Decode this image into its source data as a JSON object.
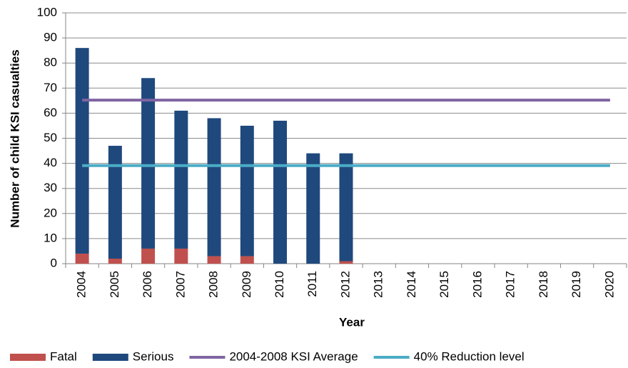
{
  "chart_data": {
    "type": "bar",
    "stacked": true,
    "x_label": "Year",
    "y_label": "Number of child KSI casualties",
    "categories": [
      "2004",
      "2005",
      "2006",
      "2007",
      "2008",
      "2009",
      "2010",
      "2011",
      "2012",
      "2013",
      "2014",
      "2015",
      "2016",
      "2017",
      "2018",
      "2019",
      "2020"
    ],
    "series": [
      {
        "name": "Fatal",
        "type": "bar",
        "color": "#c0504d",
        "values": [
          4,
          2,
          6,
          6,
          3,
          3,
          0,
          0,
          1,
          null,
          null,
          null,
          null,
          null,
          null,
          null,
          null
        ]
      },
      {
        "name": "Serious",
        "type": "bar",
        "color": "#1f497d",
        "values": [
          82,
          45,
          68,
          55,
          55,
          52,
          57,
          44,
          43,
          null,
          null,
          null,
          null,
          null,
          null,
          null,
          null
        ]
      },
      {
        "name": "2004-2008 KSI Average",
        "type": "line",
        "color": "#8064a2",
        "values": [
          65.2,
          65.2,
          65.2,
          65.2,
          65.2,
          65.2,
          65.2,
          65.2,
          65.2,
          65.2,
          65.2,
          65.2,
          65.2,
          65.2,
          65.2,
          65.2,
          65.2
        ]
      },
      {
        "name": "40% Reduction level",
        "type": "line",
        "color": "#4bacc6",
        "values": [
          39.1,
          39.1,
          39.1,
          39.1,
          39.1,
          39.1,
          39.1,
          39.1,
          39.1,
          39.1,
          39.1,
          39.1,
          39.1,
          39.1,
          39.1,
          39.1,
          39.1
        ]
      }
    ],
    "ylim": [
      0,
      100
    ],
    "yticks": [
      0,
      10,
      20,
      30,
      40,
      50,
      60,
      70,
      80,
      90,
      100
    ],
    "grid": true,
    "legend": "bottom"
  }
}
